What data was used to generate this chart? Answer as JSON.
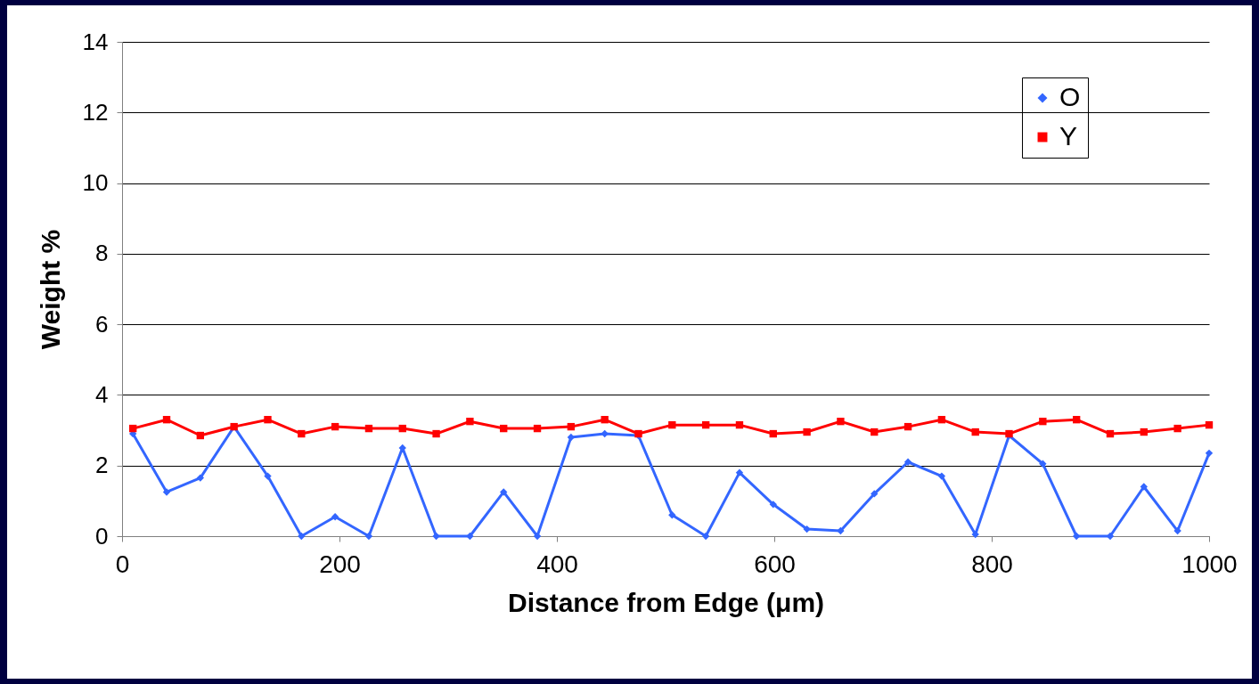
{
  "chart_data": {
    "type": "line",
    "xlabel": "Distance from Edge (μm)",
    "ylabel": "Weight %",
    "x": [
      10,
      41,
      72,
      103,
      134,
      165,
      196,
      227,
      258,
      289,
      320,
      351,
      382,
      413,
      444,
      475,
      506,
      537,
      568,
      599,
      630,
      661,
      692,
      723,
      754,
      785,
      816,
      847,
      878,
      909,
      940,
      971,
      1000
    ],
    "series": [
      {
        "name": "O",
        "color": "#3366ff",
        "marker": "diamond",
        "values": [
          2.9,
          1.25,
          1.65,
          3.1,
          1.7,
          0,
          0.55,
          0,
          2.5,
          0,
          0,
          1.25,
          0,
          2.8,
          2.9,
          2.85,
          0.6,
          0,
          1.8,
          0.9,
          0.2,
          0.15,
          1.2,
          2.1,
          1.7,
          0.05,
          2.85,
          2.05,
          0,
          0,
          1.4,
          0.15,
          2.35
        ]
      },
      {
        "name": "Y",
        "color": "#ff0000",
        "marker": "square",
        "values": [
          3.05,
          3.3,
          2.85,
          3.1,
          3.3,
          2.9,
          3.1,
          3.05,
          3.05,
          2.9,
          3.25,
          3.05,
          3.05,
          3.1,
          3.3,
          2.9,
          3.15,
          3.15,
          3.15,
          2.9,
          2.95,
          3.25,
          2.95,
          3.1,
          3.3,
          2.95,
          2.9,
          3.25,
          3.3,
          2.9,
          2.95,
          3.05,
          3.15
        ]
      }
    ],
    "xlim": [
      0,
      1000
    ],
    "xticks": [
      0,
      200,
      400,
      600,
      800,
      1000
    ],
    "ylim": [
      0,
      14
    ],
    "yticks": [
      0,
      2,
      4,
      6,
      8,
      10,
      12,
      14
    ],
    "grid": "y",
    "legend": "top right",
    "line_style": "solid"
  }
}
